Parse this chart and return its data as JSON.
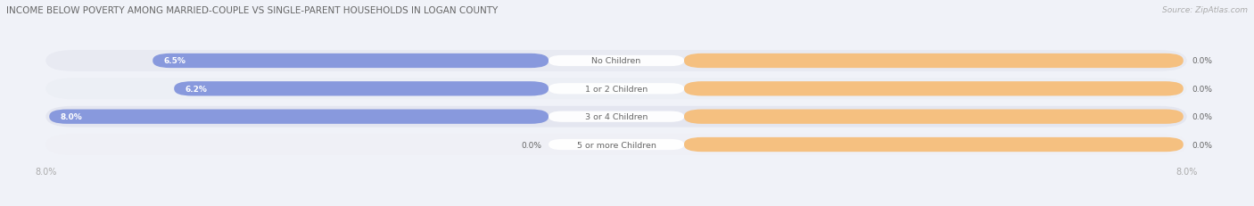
{
  "title": "INCOME BELOW POVERTY AMONG MARRIED-COUPLE VS SINGLE-PARENT HOUSEHOLDS IN LOGAN COUNTY",
  "source": "Source: ZipAtlas.com",
  "categories": [
    "No Children",
    "1 or 2 Children",
    "3 or 4 Children",
    "5 or more Children"
  ],
  "married_values": [
    6.5,
    6.2,
    8.0,
    0.0
  ],
  "single_values": [
    0.0,
    0.0,
    0.0,
    0.0
  ],
  "married_color": "#8899dd",
  "single_color": "#f5c080",
  "row_colors": [
    "#e8eaf2",
    "#eceff5",
    "#e4e6f0",
    "#eff0f6"
  ],
  "background_color": "#f0f2f8",
  "title_color": "#666666",
  "label_color": "#666666",
  "axis_label_color": "#aaaaaa",
  "x_min": -8.0,
  "x_max": 8.0,
  "figsize": [
    14.06,
    2.32
  ],
  "dpi": 100
}
